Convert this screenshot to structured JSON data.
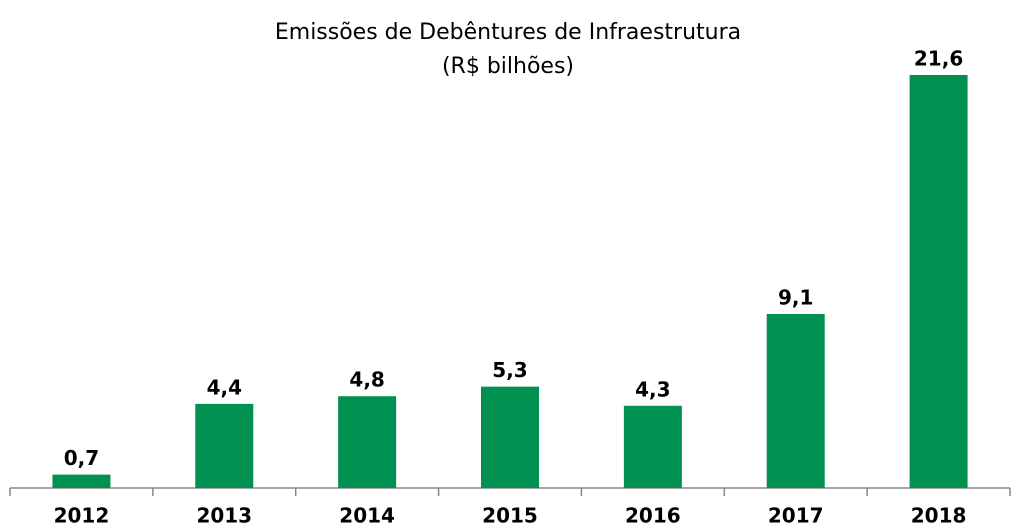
{
  "chart_data": {
    "type": "bar",
    "title": "Emissões de Debêntures de Infraestrutura",
    "subtitle": "(R$ bilhões)",
    "categories": [
      "2012",
      "2013",
      "2014",
      "2015",
      "2016",
      "2017",
      "2018"
    ],
    "values": [
      0.7,
      4.4,
      4.8,
      5.3,
      4.3,
      9.1,
      21.6
    ],
    "value_labels": [
      "0,7",
      "4,4",
      "4,8",
      "5,3",
      "4,3",
      "9,1",
      "21,6"
    ],
    "color": "#00904f"
  }
}
